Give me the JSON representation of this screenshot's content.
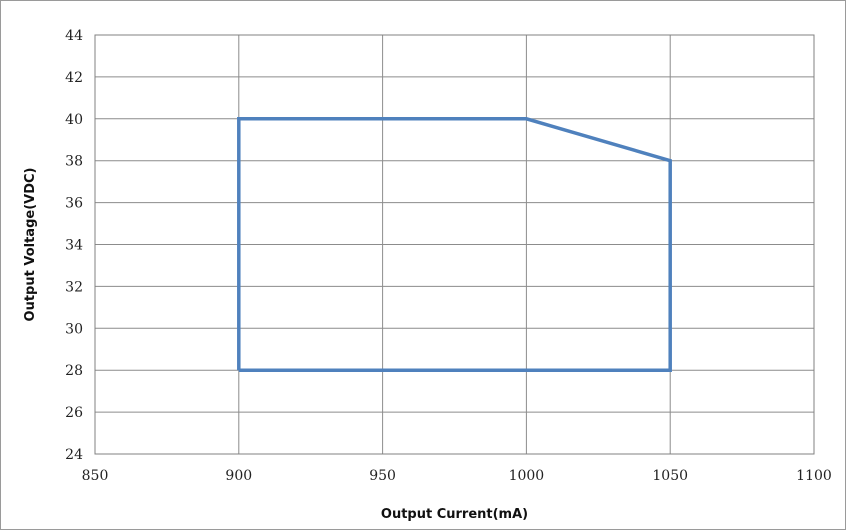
{
  "chart_data": {
    "type": "line",
    "title": "",
    "xlabel": "Output Current(mA)",
    "ylabel": "Output Voltage(VDC)",
    "xlim": [
      850,
      1100
    ],
    "ylim": [
      24,
      44
    ],
    "x_ticks": [
      850,
      900,
      950,
      1000,
      1050,
      1100
    ],
    "y_ticks": [
      24,
      26,
      28,
      30,
      32,
      34,
      36,
      38,
      40,
      42,
      44
    ],
    "grid": true,
    "legend": "none",
    "series": [
      {
        "color": "#4f81bd",
        "points": [
          [
            900,
            28
          ],
          [
            900,
            40
          ],
          [
            1000,
            40
          ],
          [
            1050,
            38
          ],
          [
            1050,
            28
          ],
          [
            900,
            28
          ]
        ]
      }
    ]
  }
}
